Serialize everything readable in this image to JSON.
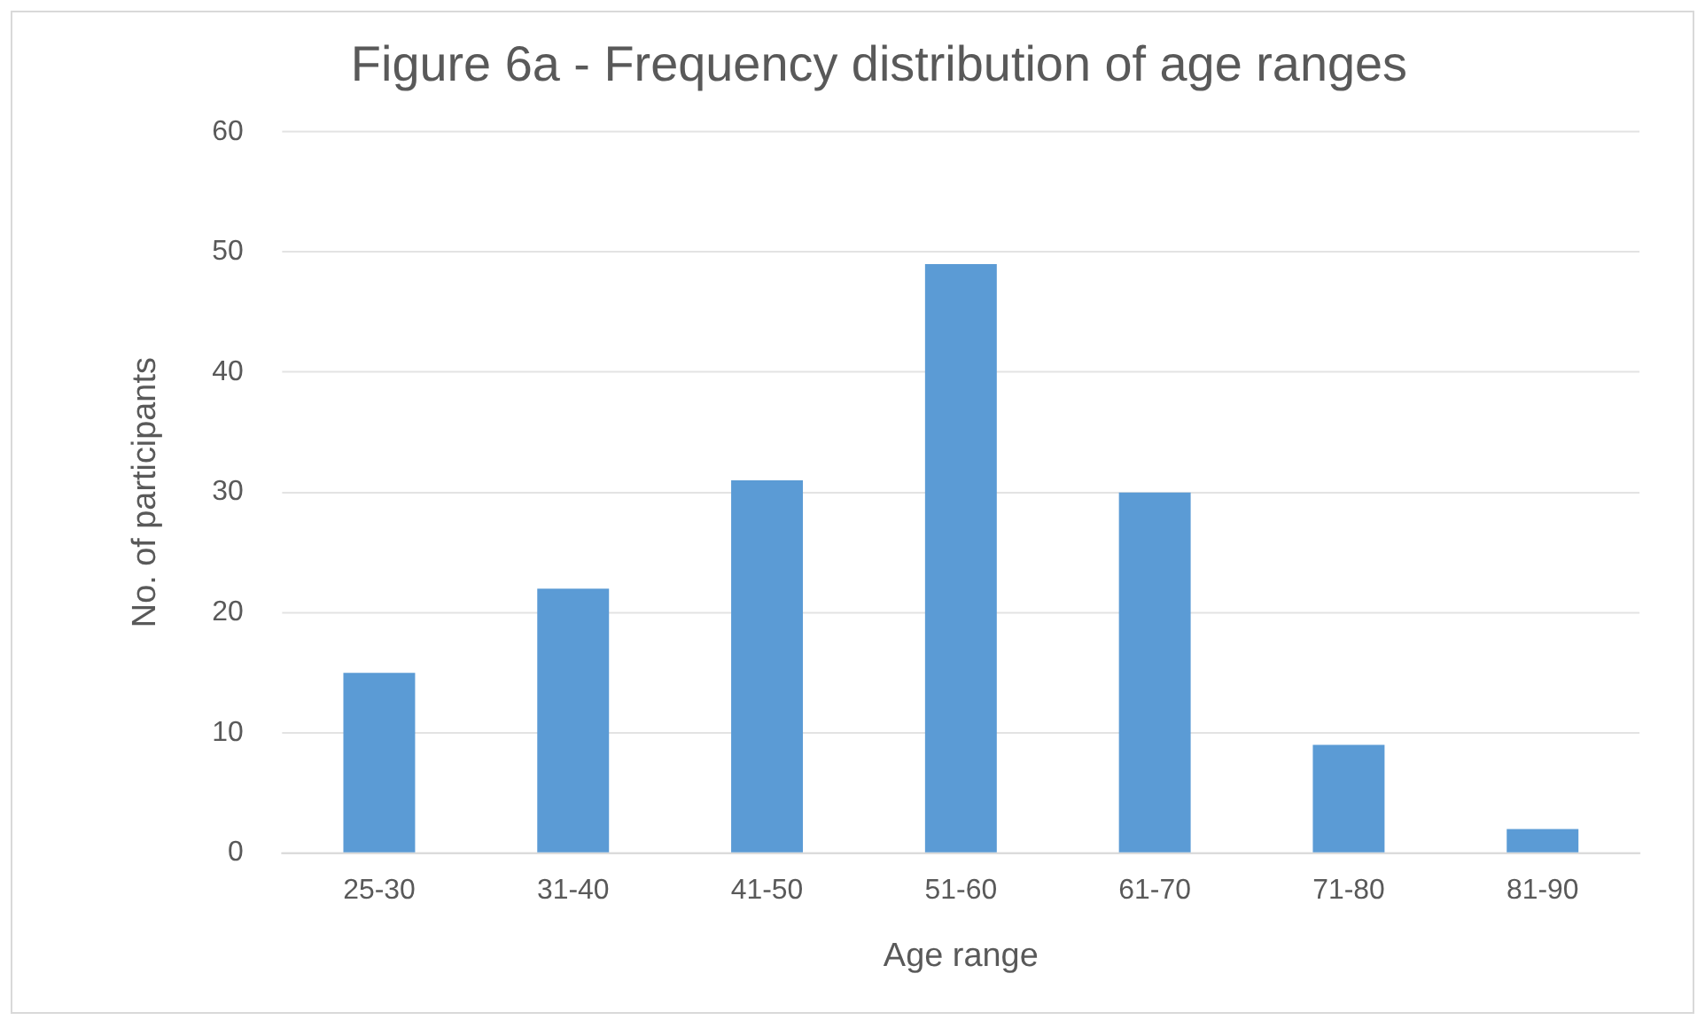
{
  "chart_data": {
    "type": "bar",
    "title": "Figure 6a - Frequency distribution of age ranges",
    "xlabel": "Age range",
    "ylabel": "No. of participants",
    "categories": [
      "25-30",
      "31-40",
      "41-50",
      "51-60",
      "61-70",
      "71-80",
      "81-90"
    ],
    "values": [
      15,
      22,
      31,
      49,
      30,
      9,
      2
    ],
    "color": "#5b9bd5",
    "ylim": [
      0,
      60
    ],
    "yticks": [
      0,
      10,
      20,
      30,
      40,
      50,
      60
    ],
    "grid": "y",
    "legend": false
  }
}
